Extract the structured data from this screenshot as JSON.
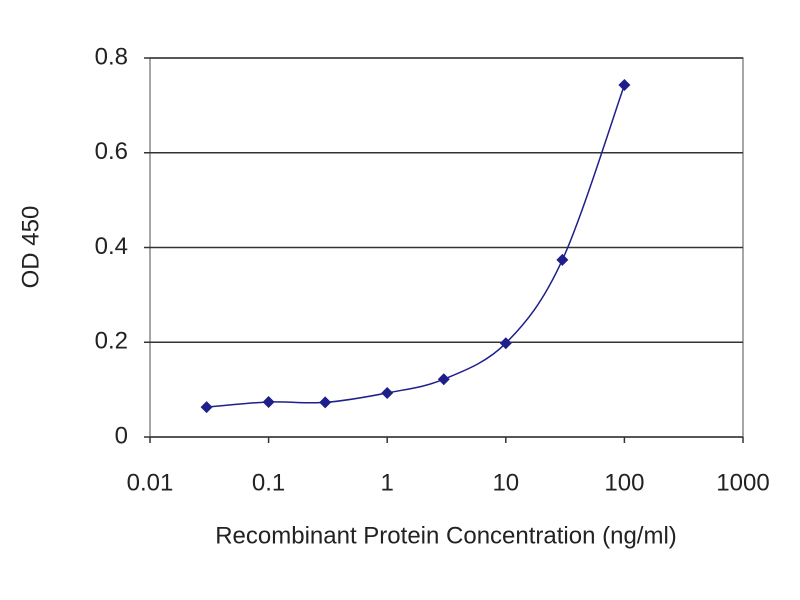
{
  "chart_data": {
    "type": "line",
    "xscale": "log",
    "markers": true,
    "grid": true,
    "color": "#1f1f8c",
    "xlabel": "Recombinant Protein Concentration (ng/ml)",
    "ylabel": "OD 450",
    "x": [
      0.03,
      0.1,
      0.3,
      1,
      3,
      10,
      30,
      100
    ],
    "values": [
      0.063,
      0.074,
      0.073,
      0.093,
      0.122,
      0.198,
      0.374,
      0.743
    ],
    "xlim": [
      0.01,
      1000
    ],
    "xticks": [
      0.01,
      0.1,
      1,
      10,
      100,
      1000
    ],
    "ylim": [
      0,
      0.8
    ],
    "yticks": [
      0,
      0.2,
      0.4,
      0.6,
      0.8
    ]
  }
}
